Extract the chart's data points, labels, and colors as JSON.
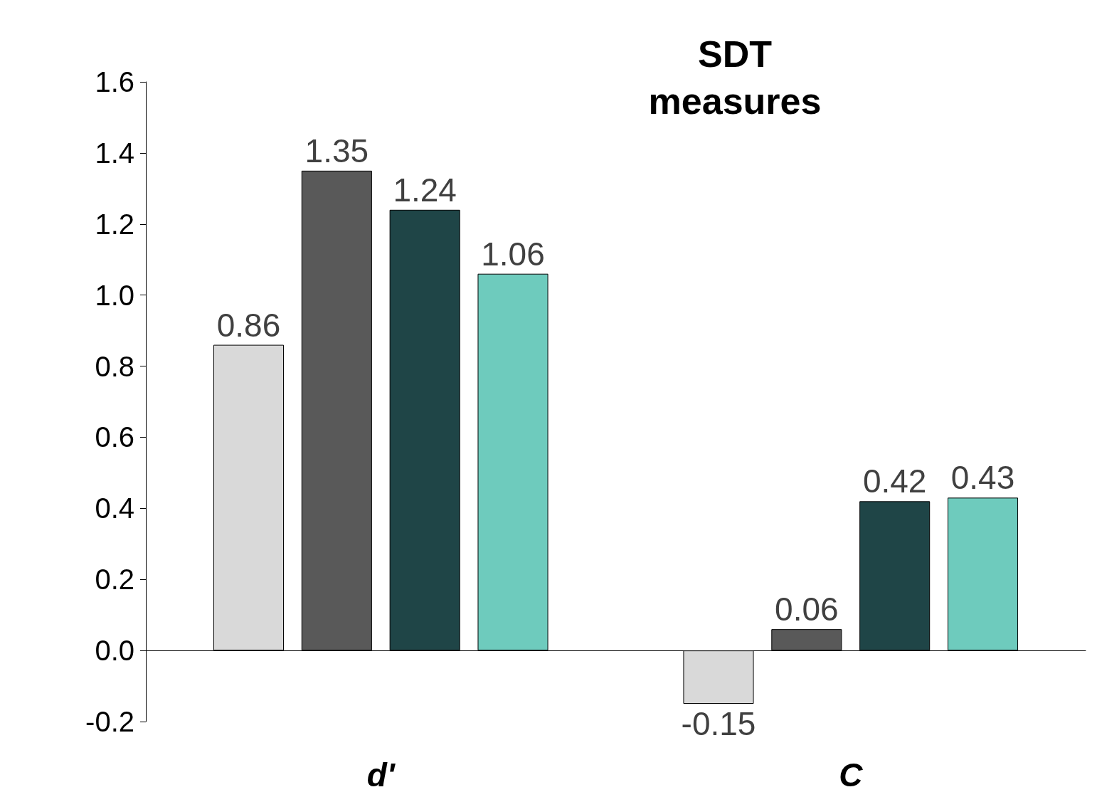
{
  "chart_data": {
    "type": "bar",
    "title": "SDT\nmeasures",
    "categories": [
      "d'",
      "C"
    ],
    "series": [
      {
        "color": "#d9d9d9",
        "values": [
          0.86,
          -0.15
        ]
      },
      {
        "color": "#595959",
        "values": [
          1.35,
          0.06
        ]
      },
      {
        "color": "#1f4547",
        "values": [
          1.24,
          0.42
        ]
      },
      {
        "color": "#6ecbbd",
        "values": [
          1.06,
          0.43
        ]
      }
    ],
    "ylim": [
      -0.2,
      1.6
    ],
    "yticks": [
      -0.2,
      {
        "value": 0,
        "label": "0.0"
      },
      0.2,
      0.4,
      0.6,
      0.8,
      {
        "value": 1,
        "label": "1.0"
      },
      1.2,
      1.4,
      1.6
    ],
    "data_labels": true
  }
}
